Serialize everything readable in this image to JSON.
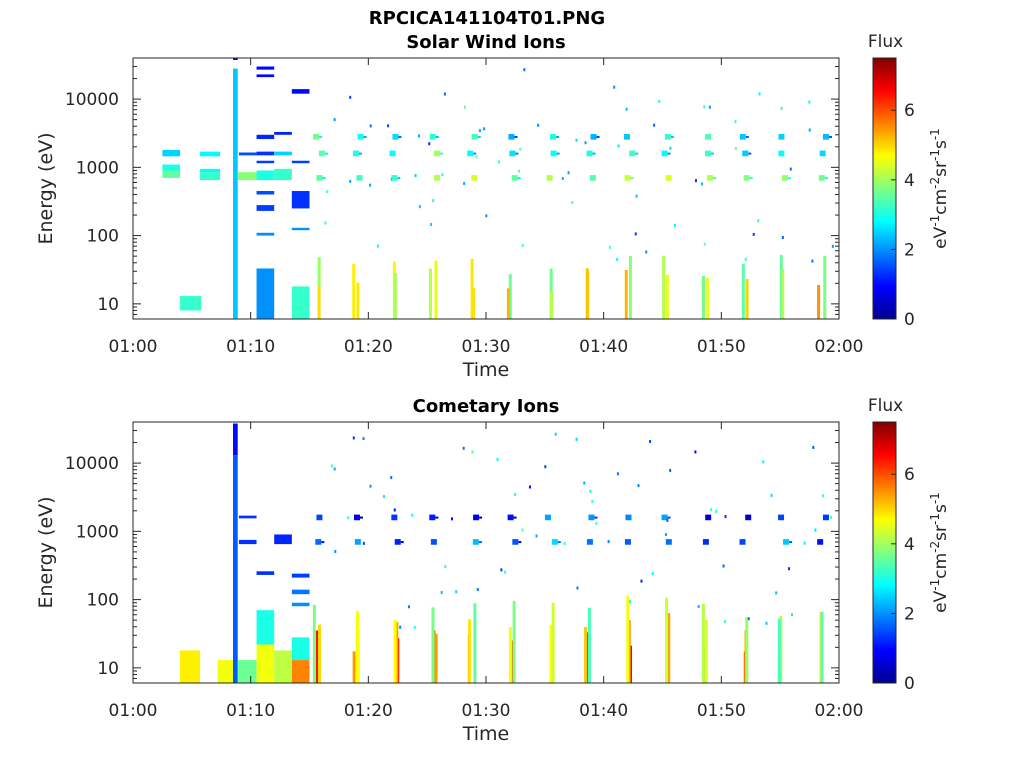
{
  "figure": {
    "title": "RPCICA141104T01.PNG"
  },
  "chart_data": [
    {
      "type": "heatmap",
      "title": "Solar Wind Ions",
      "xlabel": "Time",
      "ylabel": "Energy (eV)",
      "x_ticks": [
        "01:00",
        "01:10",
        "01:20",
        "01:30",
        "01:40",
        "01:50",
        "02:00"
      ],
      "xlim_minutes": [
        0,
        60
      ],
      "y_scale": "log",
      "y_ticks": [
        10,
        100,
        1000,
        10000
      ],
      "y_tick_labels": [
        "10",
        "100",
        "1000",
        "10000"
      ],
      "ylim": [
        6,
        40000
      ],
      "colorbar": {
        "title": "Flux",
        "label": "eV-1cm-2sr-1s-1",
        "ticks": [
          0,
          2,
          4,
          6
        ],
        "range": [
          0,
          7.5
        ],
        "colormap": "jet"
      },
      "cells": [
        {
          "t0": 2.5,
          "t1": 4.0,
          "e0": 1450,
          "e1": 1800,
          "flux": 2.5
        },
        {
          "t0": 2.5,
          "t1": 4.0,
          "e0": 700,
          "e1": 900,
          "flux": 3.5
        },
        {
          "t0": 2.5,
          "t1": 4.0,
          "e0": 900,
          "e1": 1100,
          "flux": 3.0
        },
        {
          "t0": 4.0,
          "t1": 5.8,
          "e0": 8,
          "e1": 13,
          "flux": 3.2
        },
        {
          "t0": 5.7,
          "t1": 7.4,
          "e0": 1450,
          "e1": 1700,
          "flux": 2.8
        },
        {
          "t0": 5.7,
          "t1": 7.4,
          "e0": 650,
          "e1": 850,
          "flux": 3.2
        },
        {
          "t0": 5.7,
          "t1": 7.4,
          "e0": 850,
          "e1": 950,
          "flux": 2.8
        },
        {
          "t0": 8.5,
          "t1": 8.9,
          "e0": 6,
          "e1": 28000,
          "flux": 2.4
        },
        {
          "t0": 8.5,
          "t1": 8.9,
          "e0": 38000,
          "e1": 40000,
          "flux": 1.0
        },
        {
          "t0": 8.9,
          "t1": 10.5,
          "e0": 650,
          "e1": 850,
          "flux": 3.8
        },
        {
          "t0": 9.0,
          "t1": 10.5,
          "e0": 1500,
          "e1": 1650,
          "flux": 1.5
        },
        {
          "t0": 10.5,
          "t1": 12.0,
          "e0": 6,
          "e1": 33,
          "flux": 2.0
        },
        {
          "t0": 10.5,
          "t1": 12.0,
          "e0": 27000,
          "e1": 30000,
          "flux": 1.0
        },
        {
          "t0": 10.5,
          "t1": 12.0,
          "e0": 21000,
          "e1": 23000,
          "flux": 1.0
        },
        {
          "t0": 10.5,
          "t1": 12.0,
          "e0": 2600,
          "e1": 3000,
          "flux": 1.2
        },
        {
          "t0": 10.5,
          "t1": 12.0,
          "e0": 1500,
          "e1": 1700,
          "flux": 1.3
        },
        {
          "t0": 10.5,
          "t1": 12.0,
          "e0": 1150,
          "e1": 1250,
          "flux": 1.4
        },
        {
          "t0": 10.5,
          "t1": 12.0,
          "e0": 650,
          "e1": 900,
          "flux": 3.0
        },
        {
          "t0": 10.5,
          "t1": 12.0,
          "e0": 400,
          "e1": 450,
          "flux": 1.5
        },
        {
          "t0": 10.5,
          "t1": 12.0,
          "e0": 230,
          "e1": 280,
          "flux": 1.4
        },
        {
          "t0": 10.5,
          "t1": 12.0,
          "e0": 100,
          "e1": 110,
          "flux": 2.0
        },
        {
          "t0": 12.0,
          "t1": 13.5,
          "e0": 3000,
          "e1": 3300,
          "flux": 1.2
        },
        {
          "t0": 12.0,
          "t1": 13.5,
          "e0": 1500,
          "e1": 1700,
          "flux": 2.5
        },
        {
          "t0": 12.0,
          "t1": 13.5,
          "e0": 650,
          "e1": 950,
          "flux": 3.2
        },
        {
          "t0": 13.5,
          "t1": 15.0,
          "e0": 6,
          "e1": 18,
          "flux": 3.2
        },
        {
          "t0": 13.5,
          "t1": 15.0,
          "e0": 12000,
          "e1": 14000,
          "flux": 1.0
        },
        {
          "t0": 13.5,
          "t1": 15.0,
          "e0": 1150,
          "e1": 1250,
          "flux": 1.4
        },
        {
          "t0": 13.5,
          "t1": 15.0,
          "e0": 250,
          "e1": 450,
          "flux": 1.3
        },
        {
          "t0": 13.5,
          "t1": 15.0,
          "e0": 120,
          "e1": 130,
          "flux": 2.0
        }
      ],
      "periodic_bursts": {
        "t_start": 15.5,
        "t_end": 59.5,
        "period": 3.3,
        "energies": [
          700,
          1600,
          2800,
          15,
          9
        ],
        "fluxes": [
          3.8,
          3.2,
          3.0,
          4.2,
          4.8
        ]
      }
    },
    {
      "type": "heatmap",
      "title": "Cometary Ions",
      "xlabel": "Time",
      "ylabel": "Energy (eV)",
      "x_ticks": [
        "01:00",
        "01:10",
        "01:20",
        "01:30",
        "01:40",
        "01:50",
        "02:00"
      ],
      "xlim_minutes": [
        0,
        60
      ],
      "y_scale": "log",
      "y_ticks": [
        10,
        100,
        1000,
        10000
      ],
      "y_tick_labels": [
        "10",
        "100",
        "1000",
        "10000"
      ],
      "ylim": [
        6,
        40000
      ],
      "colorbar": {
        "title": "Flux",
        "label": "eV-1cm-2sr-1s-1",
        "ticks": [
          0,
          2,
          4,
          6
        ],
        "range": [
          0,
          7.5
        ],
        "colormap": "jet"
      },
      "cells": [
        {
          "t0": 4.0,
          "t1": 5.7,
          "e0": 6,
          "e1": 18,
          "flux": 4.8
        },
        {
          "t0": 7.2,
          "t1": 8.5,
          "e0": 6,
          "e1": 13,
          "flux": 4.6
        },
        {
          "t0": 8.5,
          "t1": 8.9,
          "e0": 13000,
          "e1": 38000,
          "flux": 1.0
        },
        {
          "t0": 8.5,
          "t1": 8.9,
          "e0": 6,
          "e1": 13000,
          "flux": 1.6
        },
        {
          "t0": 8.9,
          "t1": 10.5,
          "e0": 6,
          "e1": 13,
          "flux": 3.6
        },
        {
          "t0": 9.0,
          "t1": 10.5,
          "e0": 1550,
          "e1": 1700,
          "flux": 1.3
        },
        {
          "t0": 9.0,
          "t1": 10.5,
          "e0": 650,
          "e1": 750,
          "flux": 1.3
        },
        {
          "t0": 10.5,
          "t1": 12.0,
          "e0": 6,
          "e1": 22,
          "flux": 4.6
        },
        {
          "t0": 10.5,
          "t1": 12.0,
          "e0": 22,
          "e1": 70,
          "flux": 3.0
        },
        {
          "t0": 10.5,
          "t1": 12.0,
          "e0": 230,
          "e1": 260,
          "flux": 1.3
        },
        {
          "t0": 12.0,
          "t1": 13.5,
          "e0": 6,
          "e1": 18,
          "flux": 4.2
        },
        {
          "t0": 12.0,
          "t1": 13.5,
          "e0": 650,
          "e1": 900,
          "flux": 1.2
        },
        {
          "t0": 13.5,
          "t1": 15.0,
          "e0": 6,
          "e1": 13,
          "flux": 5.6
        },
        {
          "t0": 13.5,
          "t1": 15.0,
          "e0": 13,
          "e1": 28,
          "flux": 3.0
        },
        {
          "t0": 13.5,
          "t1": 15.0,
          "e0": 210,
          "e1": 240,
          "flux": 1.4
        },
        {
          "t0": 13.5,
          "t1": 15.0,
          "e0": 120,
          "e1": 140,
          "flux": 1.8
        },
        {
          "t0": 13.5,
          "t1": 15.0,
          "e0": 80,
          "e1": 90,
          "flux": 2.0
        }
      ],
      "periodic_bursts": {
        "t_start": 15.5,
        "t_end": 59.5,
        "period": 3.3,
        "energies": [
          700,
          1600,
          10,
          18,
          30
        ],
        "fluxes": [
          1.8,
          1.4,
          6.0,
          5.0,
          4.0
        ]
      }
    }
  ]
}
